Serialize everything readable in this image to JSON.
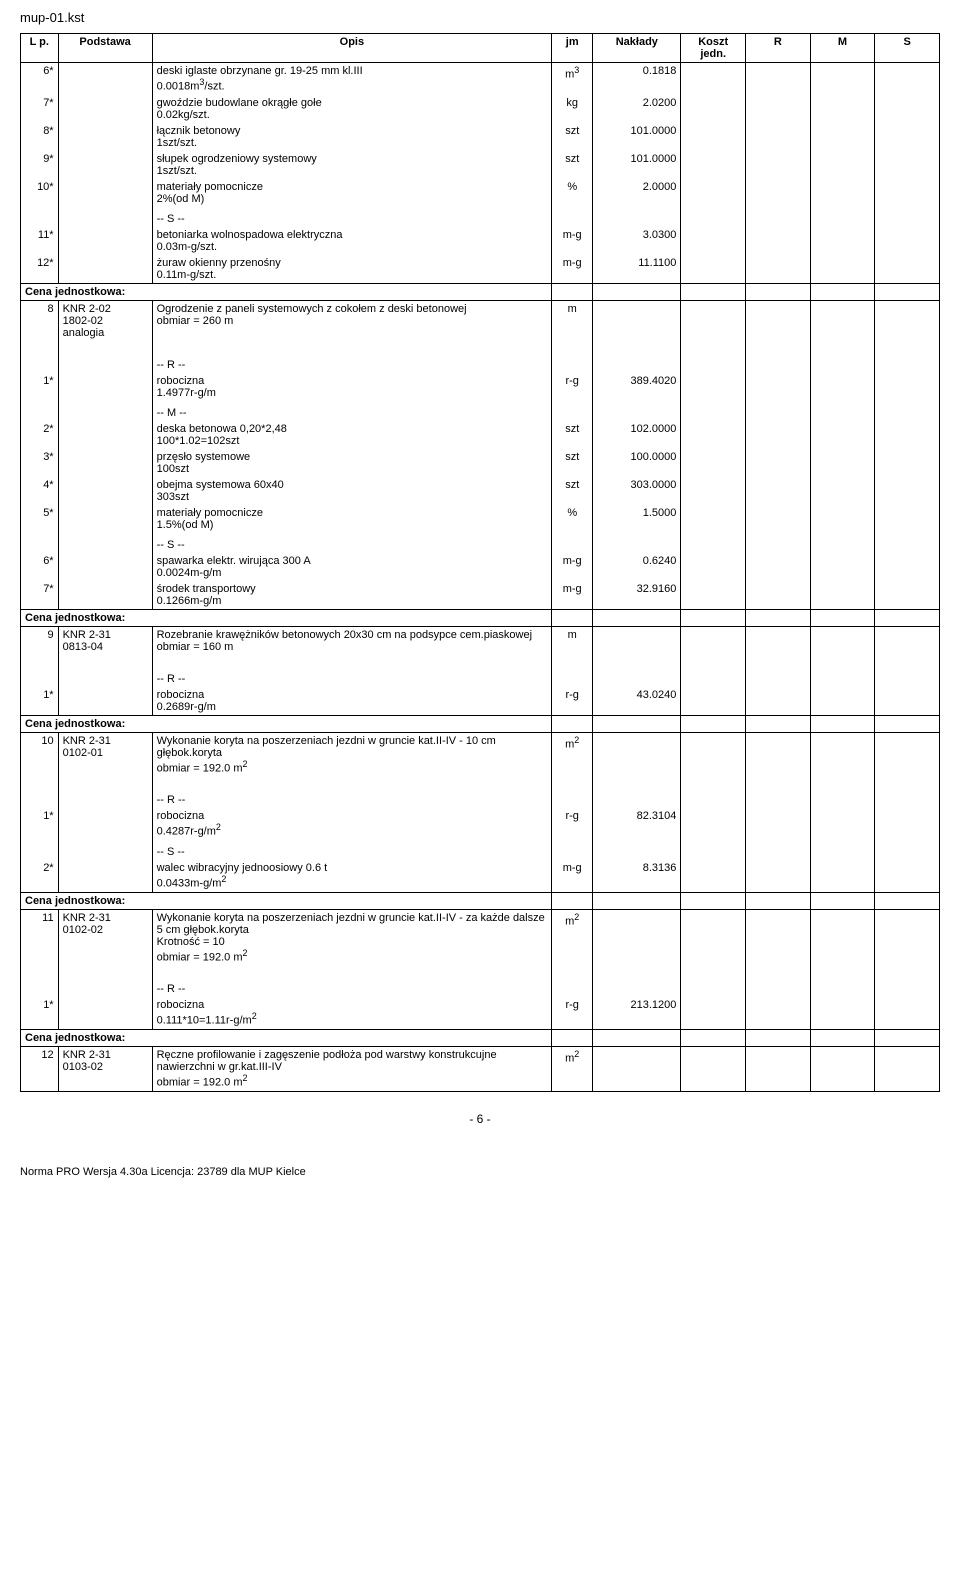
{
  "filename": "mup-01.kst",
  "header": {
    "lp": "L p.",
    "podstawa": "Podstawa",
    "opis": "Opis",
    "jm": "jm",
    "naklady": "Nakłady",
    "koszt": "Koszt jedn.",
    "r": "R",
    "m": "M",
    "s": "S"
  },
  "rows": [
    {
      "lp": "6*",
      "opis": "deski iglaste obrzynane gr. 19-25 mm kl.III\n0.0018m³/szt.",
      "jm": "m³",
      "naklady": "0.1818"
    },
    {
      "lp": "7*",
      "opis": "gwoździe budowlane okrągłe gołe\n0.02kg/szt.",
      "jm": "kg",
      "naklady": "2.0200"
    },
    {
      "lp": "8*",
      "opis": "łącznik betonowy\n1szt/szt.",
      "jm": "szt",
      "naklady": "101.0000"
    },
    {
      "lp": "9*",
      "opis": "słupek ogrodzeniowy systemowy\n1szt/szt.",
      "jm": "szt",
      "naklady": "101.0000"
    },
    {
      "lp": "10*",
      "opis": "materiały pomocnicze\n2%(od M)",
      "jm": "%",
      "naklady": "2.0000"
    },
    {
      "lp": "",
      "opis": "",
      "jm": "",
      "naklady": ""
    },
    {
      "lp": "",
      "opis": "-- S --",
      "jm": "",
      "naklady": ""
    },
    {
      "lp": "11*",
      "opis": "betoniarka wolnospadowa elektryczna\n0.03m-g/szt.",
      "jm": "m-g",
      "naklady": "3.0300"
    },
    {
      "lp": "12*",
      "opis": "żuraw okienny przenośny\n0.11m-g/szt.",
      "jm": "m-g",
      "naklady": "11.1100"
    }
  ],
  "cena_label": "Cena jednostkowa:",
  "item8": {
    "lp": "8",
    "podstawa": "KNR 2-02\n1802-02\nanalogia",
    "opis": "Ogrodzenie z paneli systemowych z cokołem z deski betonowej\nobmiar  = 260 m",
    "jm": "m"
  },
  "item8_rows": [
    {
      "lp": "",
      "opis": "-- R --",
      "jm": "",
      "naklady": ""
    },
    {
      "lp": "1*",
      "opis": "robocizna\n1.4977r-g/m",
      "jm": "r-g",
      "naklady": "389.4020"
    },
    {
      "lp": "",
      "opis": "",
      "jm": "",
      "naklady": ""
    },
    {
      "lp": "",
      "opis": "-- M --",
      "jm": "",
      "naklady": ""
    },
    {
      "lp": "2*",
      "opis": "deska betonowa 0,20*2,48\n100*1.02=102szt",
      "jm": "szt",
      "naklady": "102.0000"
    },
    {
      "lp": "3*",
      "opis": "przęsło systemowe\n100szt",
      "jm": "szt",
      "naklady": "100.0000"
    },
    {
      "lp": "4*",
      "opis": "obejma systemowa 60x40\n303szt",
      "jm": "szt",
      "naklady": "303.0000"
    },
    {
      "lp": "5*",
      "opis": "materiały pomocnicze\n1.5%(od M)",
      "jm": "%",
      "naklady": "1.5000"
    },
    {
      "lp": "",
      "opis": "",
      "jm": "",
      "naklady": ""
    },
    {
      "lp": "",
      "opis": "-- S --",
      "jm": "",
      "naklady": ""
    },
    {
      "lp": "6*",
      "opis": "spawarka elektr. wirująca 300 A\n0.0024m-g/m",
      "jm": "m-g",
      "naklady": "0.6240"
    },
    {
      "lp": "7*",
      "opis": "środek transportowy\n0.1266m-g/m",
      "jm": "m-g",
      "naklady": "32.9160"
    }
  ],
  "item9": {
    "lp": "9",
    "podstawa": "KNR 2-31\n0813-04",
    "opis": "Rozebranie krawężników betonowych 20x30 cm na podsypce cem.piaskowej\nobmiar  = 160 m",
    "jm": "m"
  },
  "item9_rows": [
    {
      "lp": "",
      "opis": "-- R --",
      "jm": "",
      "naklady": ""
    },
    {
      "lp": "1*",
      "opis": "robocizna\n0.2689r-g/m",
      "jm": "r-g",
      "naklady": "43.0240"
    }
  ],
  "item10": {
    "lp": "10",
    "podstawa": "KNR 2-31\n0102-01",
    "opis": "Wykonanie koryta na poszerzeniach jezdni w gruncie kat.II-IV - 10 cm głębok.koryta\nobmiar  = 192.0 m²",
    "jm": "m²"
  },
  "item10_rows": [
    {
      "lp": "",
      "opis": "-- R --",
      "jm": "",
      "naklady": ""
    },
    {
      "lp": "1*",
      "opis": "robocizna\n0.4287r-g/m²",
      "jm": "r-g",
      "naklady": "82.3104"
    },
    {
      "lp": "",
      "opis": "",
      "jm": "",
      "naklady": ""
    },
    {
      "lp": "",
      "opis": "-- S --",
      "jm": "",
      "naklady": ""
    },
    {
      "lp": "2*",
      "opis": "walec wibracyjny jednoosiowy 0.6 t\n0.0433m-g/m²",
      "jm": "m-g",
      "naklady": "8.3136"
    }
  ],
  "item11": {
    "lp": "11",
    "podstawa": "KNR 2-31\n0102-02",
    "opis": "Wykonanie koryta na poszerzeniach jezdni w gruncie kat.II-IV - za każde dalsze 5 cm głębok.koryta\nKrotność = 10\nobmiar  = 192.0 m²",
    "jm": "m²"
  },
  "item11_rows": [
    {
      "lp": "",
      "opis": "-- R --",
      "jm": "",
      "naklady": ""
    },
    {
      "lp": "1*",
      "opis": "robocizna\n0.111*10=1.11r-g/m²",
      "jm": "r-g",
      "naklady": "213.1200"
    }
  ],
  "item12": {
    "lp": "12",
    "podstawa": "KNR 2-31\n0103-02",
    "opis": "Ręczne profilowanie i zagęszenie podłoża pod warstwy konstrukcujne nawierzchni w gr.kat.III-IV\nobmiar  = 192.0 m²",
    "jm": "m²"
  },
  "page_number": "- 6 -",
  "norma": "Norma PRO Wersja 4.30a Licencja: 23789 dla MUP Kielce"
}
